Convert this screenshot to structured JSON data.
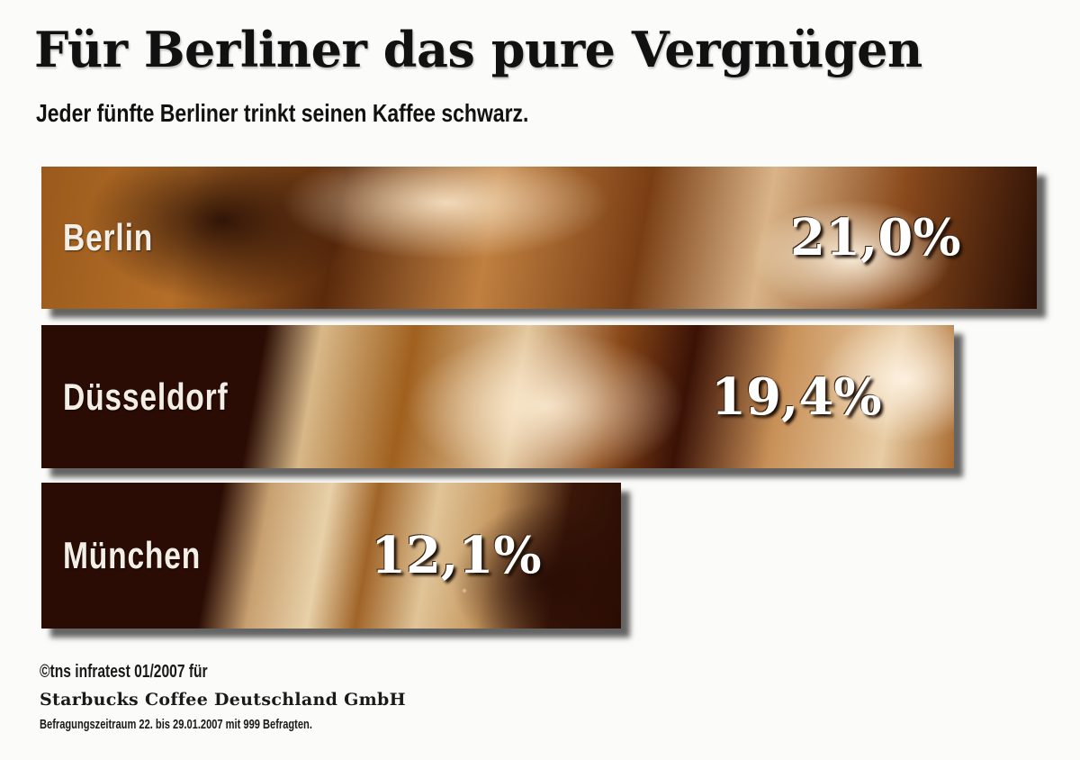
{
  "header": {
    "title": "Für Berliner das pure Vergnügen",
    "subtitle": "Jeder fünfte Berliner trinkt seinen Kaffee schwarz."
  },
  "bars": [
    {
      "label": "Berlin",
      "value_label": "21,0%"
    },
    {
      "label": "Düsseldorf",
      "value_label": "19,4%"
    },
    {
      "label": "München",
      "value_label": "12,1%"
    }
  ],
  "footer": {
    "source": "©tns infratest 01/2007 für",
    "client": "Starbucks Coffee Deutschland GmbH",
    "note": "Befragungszeitraum 22. bis 29.01.2007 mit 999 Befragten."
  },
  "colors": {
    "bar_dark": "#2a0c04",
    "bar_mid": "#a0601e",
    "bar_light": "#e8d0a8",
    "text_dark": "#111111",
    "value_text": "#ffffff"
  },
  "chart_data": {
    "type": "bar",
    "orientation": "horizontal",
    "title": "Für Berliner das pure Vergnügen",
    "subtitle": "Jeder fünfte Berliner trinkt seinen Kaffee schwarz.",
    "categories": [
      "Berlin",
      "Düsseldorf",
      "München"
    ],
    "values": [
      21.0,
      19.4,
      12.1
    ],
    "unit": "%",
    "xlabel": "",
    "ylabel": "",
    "grid": false,
    "legend": null,
    "annotations": [
      "©tns infratest 01/2007 für",
      "Starbucks Coffee Deutschland GmbH",
      "Befragungszeitraum 22. bis 29.01.2007 mit 999 Befragten."
    ]
  }
}
